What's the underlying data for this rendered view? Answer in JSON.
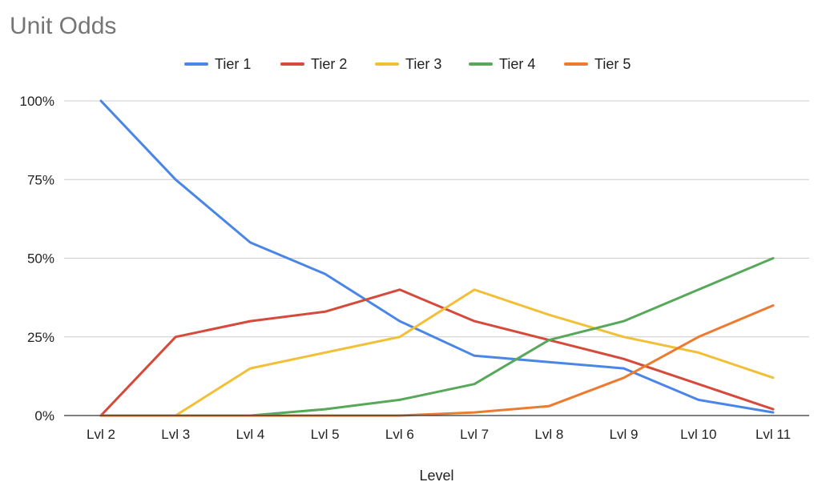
{
  "chart_data": {
    "type": "line",
    "title": "Unit Odds",
    "xlabel": "Level",
    "ylabel": "",
    "ylim": [
      0,
      100
    ],
    "y_ticks": [
      "0%",
      "25%",
      "50%",
      "75%",
      "100%"
    ],
    "y_tick_values": [
      0,
      25,
      50,
      75,
      100
    ],
    "grid": true,
    "legend_position": "top",
    "categories": [
      "Lvl 2",
      "Lvl 3",
      "Lvl 4",
      "Lvl 5",
      "Lvl 6",
      "Lvl 7",
      "Lvl 8",
      "Lvl 9",
      "Lvl 10",
      "Lvl 11"
    ],
    "series": [
      {
        "name": "Tier 1",
        "color": "#4a86e8",
        "values": [
          100,
          75,
          55,
          45,
          30,
          19,
          17,
          15,
          5,
          1
        ]
      },
      {
        "name": "Tier 2",
        "color": "#d64a3b",
        "values": [
          0,
          25,
          30,
          33,
          40,
          30,
          24,
          18,
          10,
          2
        ]
      },
      {
        "name": "Tier 3",
        "color": "#f2c037",
        "values": [
          0,
          0,
          15,
          20,
          25,
          40,
          32,
          25,
          20,
          12
        ]
      },
      {
        "name": "Tier 4",
        "color": "#57a85a",
        "values": [
          0,
          0,
          0,
          2,
          5,
          10,
          24,
          30,
          40,
          50
        ]
      },
      {
        "name": "Tier 5",
        "color": "#ee7a30",
        "values": [
          0,
          0,
          0,
          0,
          0,
          1,
          3,
          12,
          25,
          35
        ]
      }
    ]
  }
}
